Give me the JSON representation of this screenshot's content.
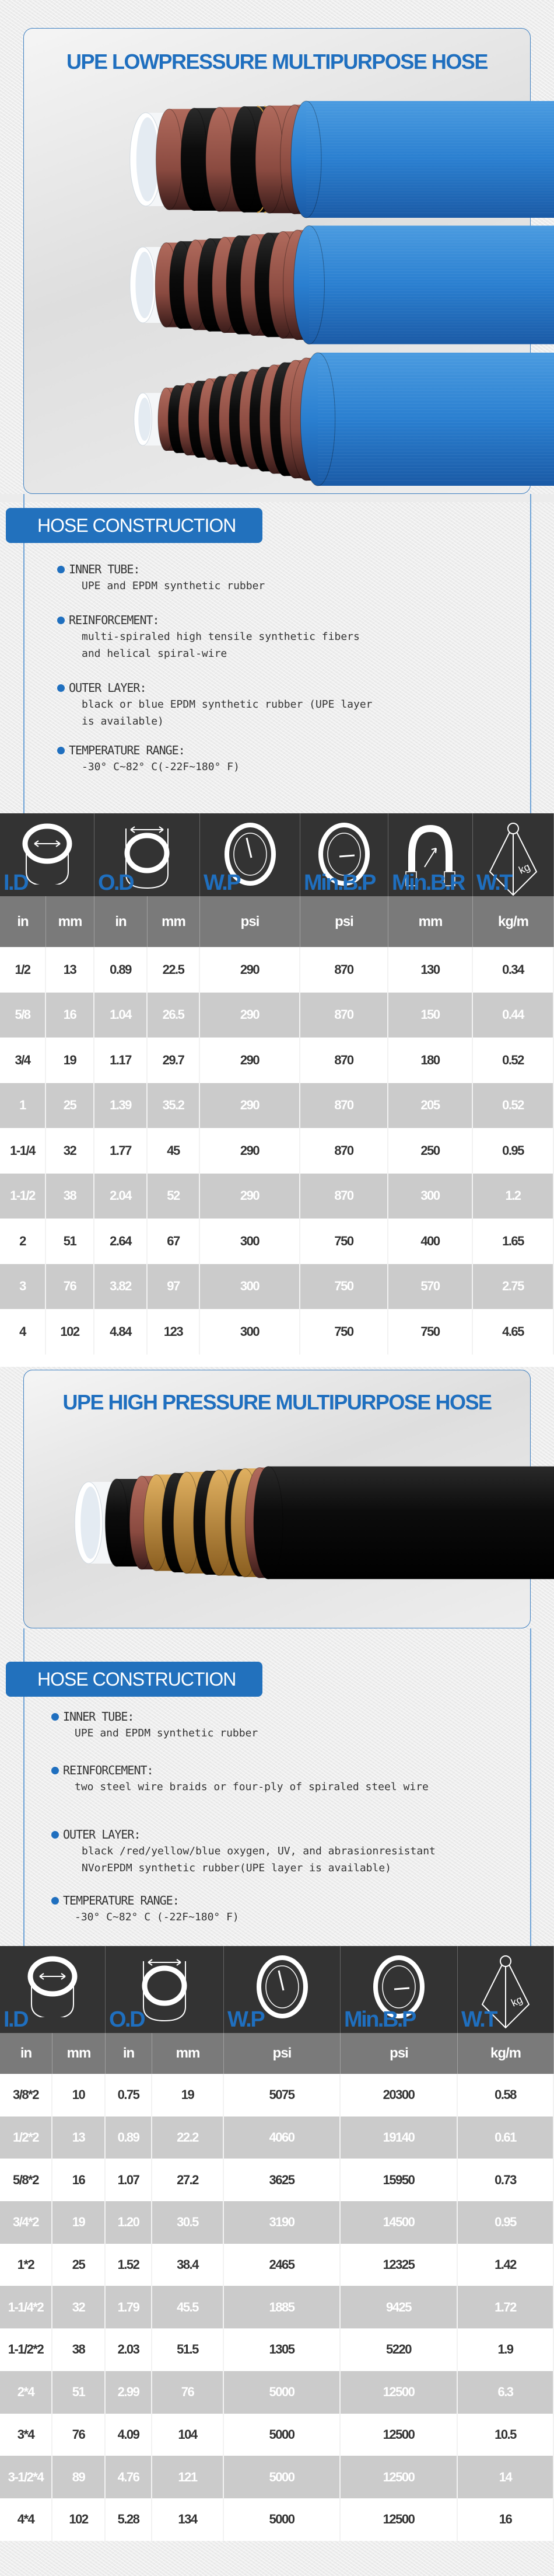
{
  "theme": {
    "accent": "#1f6fbf",
    "badge": "#2271bd",
    "header_bg": "#333333",
    "units_bg": "#7a7a7a",
    "row_alt_bg": "#cbcbcb",
    "hose_blue": "#2a7fd0",
    "hose_red": "#8a4a40",
    "hose_black": "#0c0c0c",
    "hose_gold": "#c9963e"
  },
  "sections": [
    {
      "title": "UPE LOWPRESSURE MULTIPURPOSE HOSE",
      "construction_heading": "HOSE CONSTRUCTION",
      "construction": [
        {
          "label": "INNER TUBE:",
          "lines": [
            "UPE and EPDM synthetic rubber"
          ]
        },
        {
          "label": "REINFORCEMENT:",
          "lines": [
            "multi-spiraled high tensile synthetic fibers",
            "and helical spiral-wire"
          ]
        },
        {
          "label": "OUTER LAYER:",
          "lines": [
            "black or blue EPDM synthetic rubber (UPE layer",
            "is available)"
          ]
        },
        {
          "label": "TEMPERATURE RANGE:",
          "lines": [
            "-30° C~82° C(-22F~180° F)"
          ]
        }
      ],
      "table": {
        "headers": [
          {
            "label": "I.D",
            "icon": "inner-diameter-icon",
            "span": 2
          },
          {
            "label": "O.D",
            "icon": "outer-diameter-icon",
            "span": 2
          },
          {
            "label": "W.P",
            "icon": "working-pressure-gauge-icon",
            "span": 1
          },
          {
            "label": "Min.B.P",
            "icon": "burst-pressure-gauge-icon",
            "span": 1
          },
          {
            "label": "Min.B.R",
            "icon": "bend-radius-icon",
            "span": 1
          },
          {
            "label": "W.T",
            "icon": "weight-icon",
            "span": 1
          }
        ],
        "units": [
          "in",
          "mm",
          "in",
          "mm",
          "psi",
          "psi",
          "mm",
          "kg/m"
        ],
        "rows": [
          [
            "1/2",
            "13",
            "0.89",
            "22.5",
            "290",
            "870",
            "130",
            "0.34"
          ],
          [
            "5/8",
            "16",
            "1.04",
            "26.5",
            "290",
            "870",
            "150",
            "0.44"
          ],
          [
            "3/4",
            "19",
            "1.17",
            "29.7",
            "290",
            "870",
            "180",
            "0.52"
          ],
          [
            "1",
            "25",
            "1.39",
            "35.2",
            "290",
            "870",
            "205",
            "0.52"
          ],
          [
            "1-1/4",
            "32",
            "1.77",
            "45",
            "290",
            "870",
            "250",
            "0.95"
          ],
          [
            "1-1/2",
            "38",
            "2.04",
            "52",
            "290",
            "870",
            "300",
            "1.2"
          ],
          [
            "2",
            "51",
            "2.64",
            "67",
            "300",
            "750",
            "400",
            "1.65"
          ],
          [
            "3",
            "76",
            "3.82",
            "97",
            "300",
            "750",
            "570",
            "2.75"
          ],
          [
            "4",
            "102",
            "4.84",
            "123",
            "300",
            "750",
            "750",
            "4.65"
          ]
        ]
      }
    },
    {
      "title": "UPE HIGH PRESSURE MULTIPURPOSE HOSE",
      "construction_heading": "HOSE CONSTRUCTION",
      "construction": [
        {
          "label": "INNER TUBE:",
          "lines": [
            "UPE and EPDM synthetic rubber"
          ]
        },
        {
          "label": "REINFORCEMENT:",
          "lines": [
            "two steel wire braids or four-ply of spiraled steel wire"
          ]
        },
        {
          "label": " OUTER LAYER:",
          "lines": [
            "black /red/yellow/blue oxygen, UV, and abrasionresistant",
            "NVorEPDM synthetic rubber(UPE layer is available)"
          ]
        },
        {
          "label": "TEMPERATURE RANGE:",
          "lines": [
            "-30° C~82° C (-22F~180° F)"
          ]
        }
      ],
      "table": {
        "headers": [
          {
            "label": "I.D",
            "icon": "inner-diameter-icon",
            "span": 2
          },
          {
            "label": "O.D",
            "icon": "outer-diameter-icon",
            "span": 2
          },
          {
            "label": "W.P",
            "icon": "working-pressure-gauge-icon",
            "span": 1
          },
          {
            "label": "Min.B.P",
            "icon": "burst-pressure-gauge-icon",
            "span": 1
          },
          {
            "label": "W.T",
            "icon": "weight-icon",
            "span": 1
          }
        ],
        "units": [
          "in",
          "mm",
          "in",
          "mm",
          "psi",
          "psi",
          "kg/m"
        ],
        "rows": [
          [
            "3/8*2",
            "10",
            "0.75",
            "19",
            "5075",
            "20300",
            "0.58"
          ],
          [
            "1/2*2",
            "13",
            "0.89",
            "22.2",
            "4060",
            "19140",
            "0.61"
          ],
          [
            "5/8*2",
            "16",
            "1.07",
            "27.2",
            "3625",
            "15950",
            "0.73"
          ],
          [
            "3/4*2",
            "19",
            "1.20",
            "30.5",
            "3190",
            "14500",
            "0.95"
          ],
          [
            "1*2",
            "25",
            "1.52",
            "38.4",
            "2465",
            "12325",
            "1.42"
          ],
          [
            "1-1/4*2",
            "32",
            "1.79",
            "45.5",
            "1885",
            "9425",
            "1.72"
          ],
          [
            "1-1/2*2",
            "38",
            "2.03",
            "51.5",
            "1305",
            "5220",
            "1.9"
          ],
          [
            "2*4",
            "51",
            "2.99",
            "76",
            "5000",
            "12500",
            "6.3"
          ],
          [
            "3*4",
            "76",
            "4.09",
            "104",
            "5000",
            "12500",
            "10.5"
          ],
          [
            "3-1/2*4",
            "89",
            "4.76",
            "121",
            "5000",
            "12500",
            "14"
          ],
          [
            "4*4",
            "102",
            "5.28",
            "134",
            "5000",
            "12500",
            "16"
          ]
        ]
      }
    }
  ]
}
